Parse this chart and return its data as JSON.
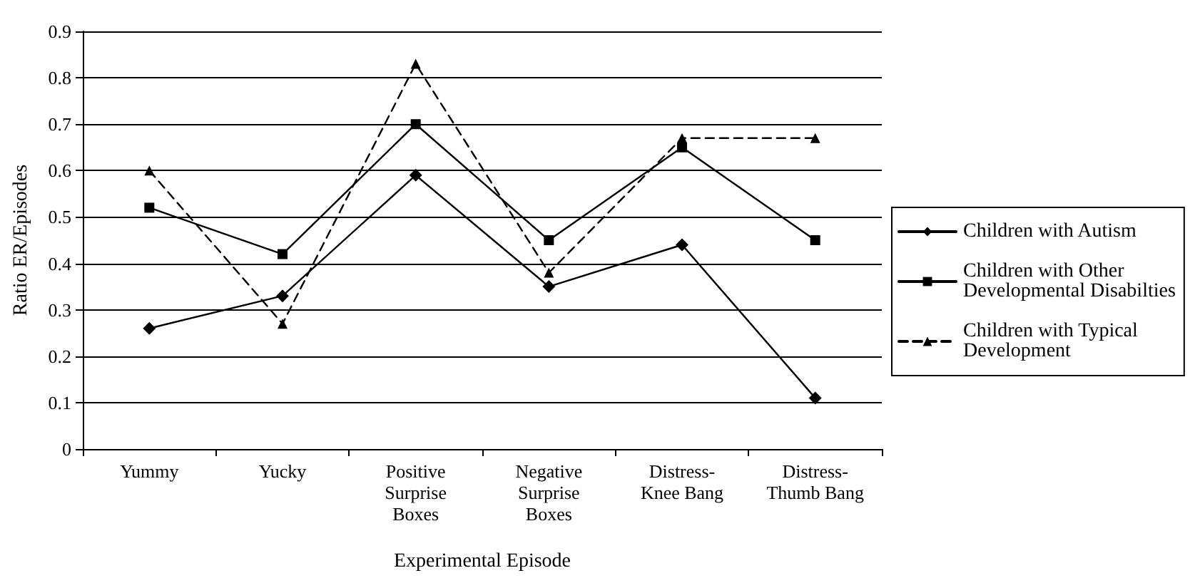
{
  "chart_data": {
    "type": "line",
    "xlabel": "Experimental Episode",
    "ylabel": "Ratio ER/Episodes",
    "categories": [
      "Yummy",
      "Yucky",
      "Positive\nSurprise\nBoxes",
      "Negative\nSurprise\nBoxes",
      "Distress-\nKnee Bang",
      "Distress-\nThumb Bang"
    ],
    "series": [
      {
        "name": "Children with Autism",
        "color": "#000000",
        "marker": "diamond",
        "line_style": "solid",
        "values": [
          0.26,
          0.33,
          0.59,
          0.35,
          0.44,
          0.11
        ]
      },
      {
        "name": "Children with Other Developmental Disabilties",
        "color": "#000000",
        "marker": "square",
        "line_style": "solid",
        "values": [
          0.52,
          0.42,
          0.7,
          0.45,
          0.65,
          0.45
        ]
      },
      {
        "name": "Children with Typical Development",
        "color": "#000000",
        "marker": "triangle",
        "line_style": "dashed",
        "values": [
          0.6,
          0.27,
          0.83,
          0.38,
          0.67,
          0.67
        ]
      }
    ],
    "ylim": [
      0,
      0.9
    ],
    "yticks": [
      0,
      0.1,
      0.2,
      0.3,
      0.4,
      0.5,
      0.6,
      0.7,
      0.8,
      0.9
    ],
    "grid": "y",
    "legend": "right"
  }
}
